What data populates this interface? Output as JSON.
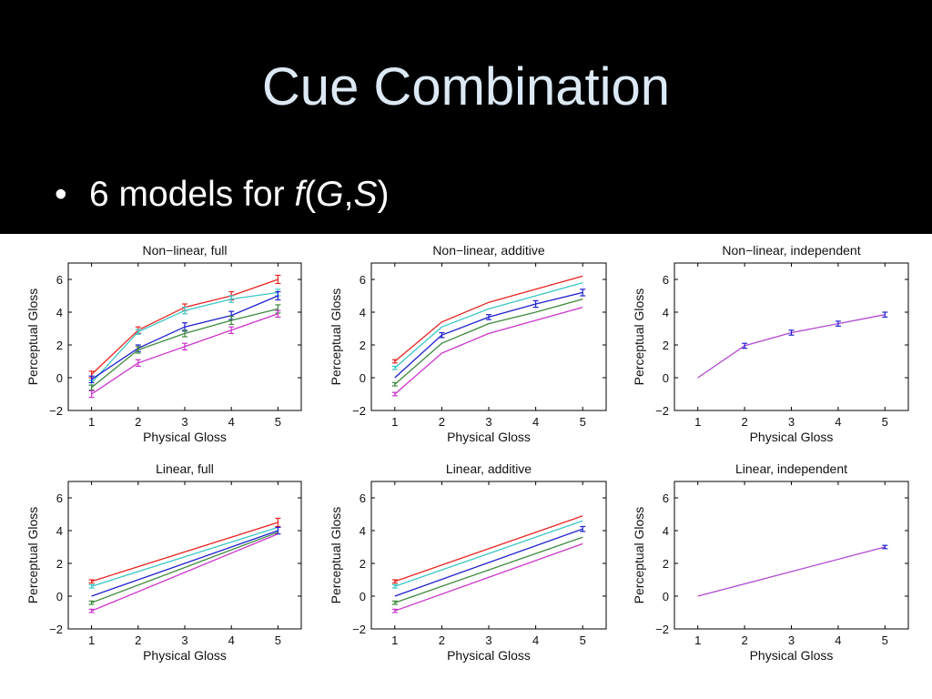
{
  "slide": {
    "title": "Cue Combination",
    "bullet_text": "6 models for ",
    "bullet_f": "f",
    "bullet_open": "(",
    "bullet_G": "G",
    "bullet_comma": ",",
    "bullet_S": "S",
    "bullet_close": ")"
  },
  "chart_data": [
    {
      "type": "line",
      "title": "Non−linear, full",
      "xlabel": "Physical Gloss",
      "ylabel": "Perceptual Gloss",
      "x": [
        1,
        2,
        3,
        4,
        5
      ],
      "xlim": [
        0.5,
        5.5
      ],
      "ylim": [
        -2,
        7
      ],
      "xticks": [
        1,
        2,
        3,
        4,
        5
      ],
      "yticks": [
        -2,
        0,
        2,
        4,
        6
      ],
      "series": [
        {
          "color": "#e8231f",
          "values": [
            0.2,
            2.9,
            4.3,
            5.0,
            6.0
          ],
          "errors": [
            0.2,
            0.2,
            0.2,
            0.25,
            0.25
          ]
        },
        {
          "color": "#3cc6c6",
          "values": [
            -0.3,
            2.8,
            4.1,
            4.8,
            5.2
          ],
          "errors": [
            0.15,
            0.15,
            0.2,
            0.2,
            0.2
          ]
        },
        {
          "color": "#1f1fd0",
          "values": [
            -0.1,
            1.8,
            3.1,
            3.8,
            5.0
          ],
          "errors": [
            0.2,
            0.2,
            0.25,
            0.25,
            0.25
          ]
        },
        {
          "color": "#3d8a3d",
          "values": [
            -0.6,
            1.7,
            2.7,
            3.5,
            4.2
          ],
          "errors": [
            0.15,
            0.2,
            0.2,
            0.25,
            0.25
          ]
        },
        {
          "color": "#cc33cc",
          "values": [
            -1.0,
            0.9,
            1.9,
            2.9,
            3.9
          ],
          "errors": [
            0.2,
            0.2,
            0.2,
            0.2,
            0.2
          ]
        }
      ]
    },
    {
      "type": "line",
      "title": "Non−linear, additive",
      "xlabel": "Physical Gloss",
      "ylabel": "Perceptual Gloss",
      "x": [
        1,
        2,
        3,
        4,
        5
      ],
      "xlim": [
        0.5,
        5.5
      ],
      "ylim": [
        -2,
        7
      ],
      "xticks": [
        1,
        2,
        3,
        4,
        5
      ],
      "yticks": [
        -2,
        0,
        2,
        4,
        6
      ],
      "series": [
        {
          "color": "#e8231f",
          "values": [
            1.0,
            3.4,
            4.6,
            5.4,
            6.2
          ],
          "errors": [
            0.1,
            0,
            0,
            0,
            0
          ]
        },
        {
          "color": "#3cc6c6",
          "values": [
            0.6,
            3.1,
            4.2,
            5.0,
            5.8
          ],
          "errors": [
            0.1,
            0,
            0,
            0,
            0
          ]
        },
        {
          "color": "#1f1fd0",
          "values": [
            0.0,
            2.6,
            3.7,
            4.5,
            5.2
          ],
          "errors": [
            0,
            0.15,
            0.15,
            0.2,
            0.2
          ]
        },
        {
          "color": "#3d8a3d",
          "values": [
            -0.4,
            2.1,
            3.3,
            4.0,
            4.8
          ],
          "errors": [
            0.1,
            0,
            0,
            0,
            0
          ]
        },
        {
          "color": "#cc33cc",
          "values": [
            -1.0,
            1.5,
            2.7,
            3.5,
            4.3
          ],
          "errors": [
            0.1,
            0,
            0,
            0,
            0
          ]
        }
      ]
    },
    {
      "type": "line",
      "title": "Non−linear, independent",
      "xlabel": "Physical Gloss",
      "ylabel": "Perceptual Gloss",
      "x": [
        1,
        2,
        3,
        4,
        5
      ],
      "xlim": [
        0.5,
        5.5
      ],
      "ylim": [
        -2,
        7
      ],
      "xticks": [
        1,
        2,
        3,
        4,
        5
      ],
      "yticks": [
        -2,
        0,
        2,
        4,
        6
      ],
      "series": [
        {
          "color": "#b048d0",
          "values": [
            0.0,
            1.95,
            2.75,
            3.3,
            3.85
          ],
          "errors": [
            0,
            0.15,
            0.15,
            0.15,
            0.15
          ],
          "error_color": "#1f1fd0"
        }
      ]
    },
    {
      "type": "line",
      "title": "Linear, full",
      "xlabel": "Physical Gloss",
      "ylabel": "Perceptual Gloss",
      "x": [
        1,
        5
      ],
      "xlim": [
        0.5,
        5.5
      ],
      "ylim": [
        -2,
        7
      ],
      "xticks": [
        1,
        2,
        3,
        4,
        5
      ],
      "yticks": [
        -2,
        0,
        2,
        4,
        6
      ],
      "series": [
        {
          "color": "#e8231f",
          "values": [
            0.9,
            4.5
          ],
          "errors": [
            0.1,
            0.25
          ]
        },
        {
          "color": "#3cc6c6",
          "values": [
            0.6,
            4.2
          ],
          "errors": [
            0.1,
            0
          ]
        },
        {
          "color": "#1f1fd0",
          "values": [
            0.0,
            4.0
          ],
          "errors": [
            0,
            0.2
          ]
        },
        {
          "color": "#3d8a3d",
          "values": [
            -0.4,
            3.9
          ],
          "errors": [
            0.1,
            0
          ]
        },
        {
          "color": "#cc33cc",
          "values": [
            -0.9,
            3.8
          ],
          "errors": [
            0.1,
            0
          ]
        }
      ]
    },
    {
      "type": "line",
      "title": "Linear, additive",
      "xlabel": "Physical Gloss",
      "ylabel": "Perceptual Gloss",
      "x": [
        1,
        5
      ],
      "xlim": [
        0.5,
        5.5
      ],
      "ylim": [
        -2,
        7
      ],
      "xticks": [
        1,
        2,
        3,
        4,
        5
      ],
      "yticks": [
        -2,
        0,
        2,
        4,
        6
      ],
      "series": [
        {
          "color": "#e8231f",
          "values": [
            0.9,
            4.9
          ],
          "errors": [
            0.1,
            0
          ]
        },
        {
          "color": "#3cc6c6",
          "values": [
            0.6,
            4.6
          ],
          "errors": [
            0.1,
            0
          ]
        },
        {
          "color": "#1f1fd0",
          "values": [
            0.0,
            4.1
          ],
          "errors": [
            0,
            0.15
          ]
        },
        {
          "color": "#3d8a3d",
          "values": [
            -0.4,
            3.6
          ],
          "errors": [
            0.1,
            0
          ]
        },
        {
          "color": "#cc33cc",
          "values": [
            -0.9,
            3.2
          ],
          "errors": [
            0.1,
            0
          ]
        }
      ]
    },
    {
      "type": "line",
      "title": "Linear, independent",
      "xlabel": "Physical Gloss",
      "ylabel": "Perceptual Gloss",
      "x": [
        1,
        5
      ],
      "xlim": [
        0.5,
        5.5
      ],
      "ylim": [
        -2,
        7
      ],
      "xticks": [
        1,
        2,
        3,
        4,
        5
      ],
      "yticks": [
        -2,
        0,
        2,
        4,
        6
      ],
      "series": [
        {
          "color": "#b048d0",
          "values": [
            0.0,
            3.0
          ],
          "errors": [
            0,
            0.1
          ],
          "error_color": "#1f1fd0"
        }
      ]
    }
  ]
}
